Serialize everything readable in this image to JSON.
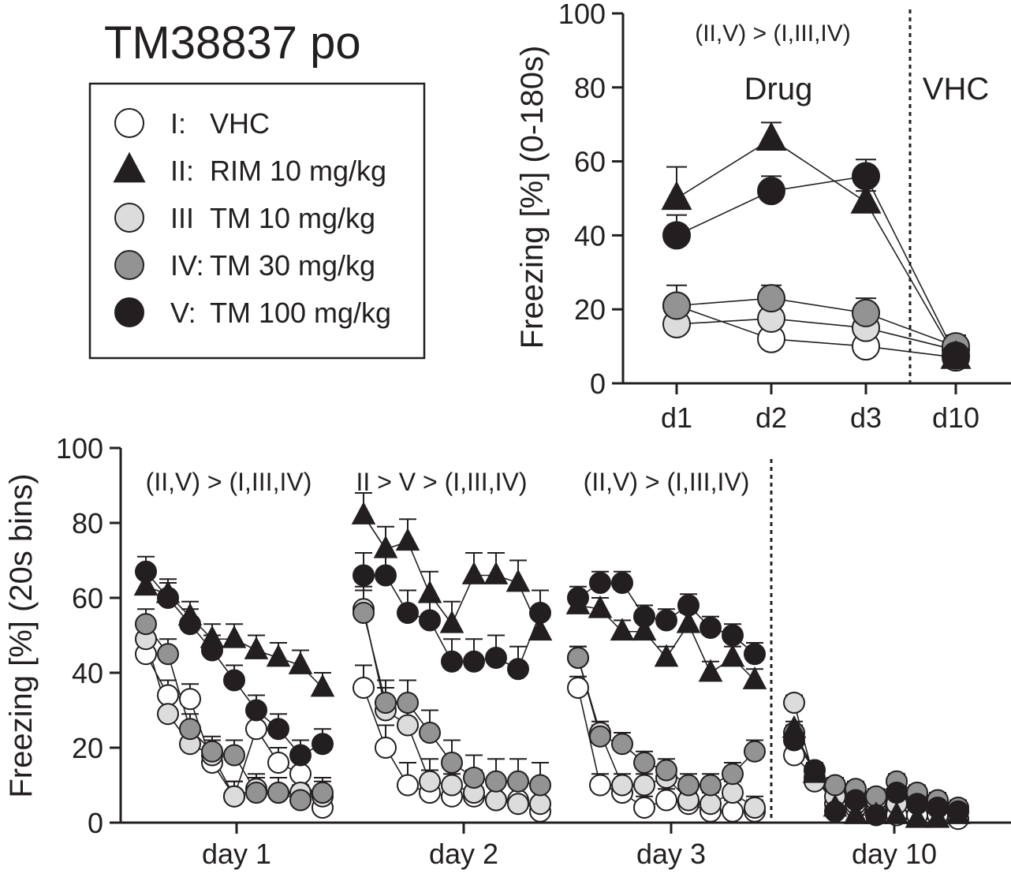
{
  "figure_title": "TM38837 po",
  "legend": {
    "items": [
      {
        "id": "I",
        "prefix": "I:",
        "label": "VHC",
        "marker": "circle",
        "fill": "#ffffff"
      },
      {
        "id": "II",
        "prefix": "II:",
        "label": "RIM 10 mg/kg",
        "marker": "triangle",
        "fill": "#231f20"
      },
      {
        "id": "III",
        "prefix": "III",
        "label": "TM 10 mg/kg",
        "marker": "circle",
        "fill": "#dcdcdc"
      },
      {
        "id": "IV",
        "prefix": "IV:",
        "label": "TM 30 mg/kg",
        "marker": "circle",
        "fill": "#939393"
      },
      {
        "id": "V",
        "prefix": "V:",
        "label": "TM 100 mg/kg",
        "marker": "circle",
        "fill": "#231f20"
      }
    ]
  },
  "chart_data": [
    {
      "id": "top",
      "type": "line",
      "ylabel": "Freezing [%] (0-180s)",
      "ylim": [
        0,
        100
      ],
      "yticks": [
        0,
        20,
        40,
        60,
        80,
        100
      ],
      "categories": [
        "d1",
        "d2",
        "d3",
        "d10"
      ],
      "annotations": {
        "comparison": "(II,V) > (I,III,IV)",
        "phase_drug": "Drug",
        "phase_vhc": "VHC"
      },
      "series": [
        {
          "id": "I",
          "values": [
            21,
            12,
            10,
            7
          ],
          "errors": [
            2.5,
            2,
            2,
            2
          ]
        },
        {
          "id": "II",
          "values": [
            50,
            66,
            49,
            7
          ],
          "errors": [
            8.5,
            4.5,
            3,
            2
          ]
        },
        {
          "id": "III",
          "values": [
            16,
            17.5,
            15,
            9
          ],
          "errors": [
            2.5,
            2.5,
            2.5,
            2
          ]
        },
        {
          "id": "IV",
          "values": [
            21,
            23,
            19,
            10
          ],
          "errors": [
            5.5,
            3.5,
            4,
            3
          ]
        },
        {
          "id": "V",
          "values": [
            40,
            52,
            56,
            7.5
          ],
          "errors": [
            5.5,
            4,
            4.5,
            2
          ]
        }
      ]
    },
    {
      "id": "bottom",
      "type": "line",
      "ylabel": "Freezing [%] (20s bins)",
      "ylim": [
        0,
        100
      ],
      "yticks": [
        0,
        20,
        40,
        60,
        80,
        100
      ],
      "groups": [
        "day 1",
        "day 2",
        "day 3",
        "day 10"
      ],
      "bins_per_group": 9,
      "annotations": [
        "(II,V) > (I,III,IV)",
        "II > V > (I,III,IV)",
        "(II,V) > (I,III,IV)"
      ],
      "series": [
        {
          "id": "I",
          "days": [
            [
              45,
              34,
              33,
              16,
              7,
              25,
              16,
              13,
              4
            ],
            [
              36,
              20,
              10,
              8,
              7,
              7,
              6,
              6,
              3
            ],
            [
              36,
              10,
              8,
              4,
              6,
              5,
              3,
              3,
              3
            ],
            [
              18,
              12,
              5,
              4,
              3,
              2,
              2,
              2,
              1
            ]
          ]
        },
        {
          "id": "II",
          "days": [
            [
              63,
              61,
              55,
              49,
              49,
              46,
              44,
              42,
              36
            ],
            [
              82,
              73,
              75,
              61,
              53,
              66,
              66,
              64,
              51
            ],
            [
              58,
              57,
              51,
              51,
              44,
              53,
              40,
              44,
              38
            ],
            [
              25,
              13,
              4,
              2,
              2,
              2,
              1,
              1,
              2
            ]
          ]
        },
        {
          "id": "III",
          "days": [
            [
              49,
              29,
              21,
              18,
              7,
              9,
              8,
              8,
              7
            ],
            [
              57,
              30,
              26,
              11,
              10,
              8,
              6,
              5,
              5
            ],
            [
              44,
              24,
              10,
              10,
              12,
              6,
              5,
              8,
              4
            ],
            [
              32,
              11,
              7,
              5,
              6,
              5,
              7,
              5,
              3
            ]
          ]
        },
        {
          "id": "IV",
          "days": [
            [
              53,
              45,
              25,
              19,
              18,
              8,
              8,
              6,
              8
            ],
            [
              56,
              32,
              32,
              24,
              16,
              12,
              11,
              11,
              10
            ],
            [
              44,
              23,
              21,
              16,
              14,
              10,
              10,
              13,
              19
            ],
            [
              24,
              14,
              10,
              9,
              7,
              11,
              8,
              6,
              4
            ]
          ]
        },
        {
          "id": "V",
          "days": [
            [
              67,
              60,
              53,
              46,
              38,
              30,
              25,
              18,
              21
            ],
            [
              66,
              66,
              56,
              54,
              43,
              43,
              44,
              41,
              56
            ],
            [
              60,
              64,
              64,
              55,
              54,
              58,
              52,
              50,
              45
            ],
            [
              22,
              14,
              3,
              6,
              2,
              8,
              5,
              4,
              3
            ]
          ]
        }
      ],
      "errors": [
        4,
        6,
        3,
        2
      ]
    }
  ]
}
